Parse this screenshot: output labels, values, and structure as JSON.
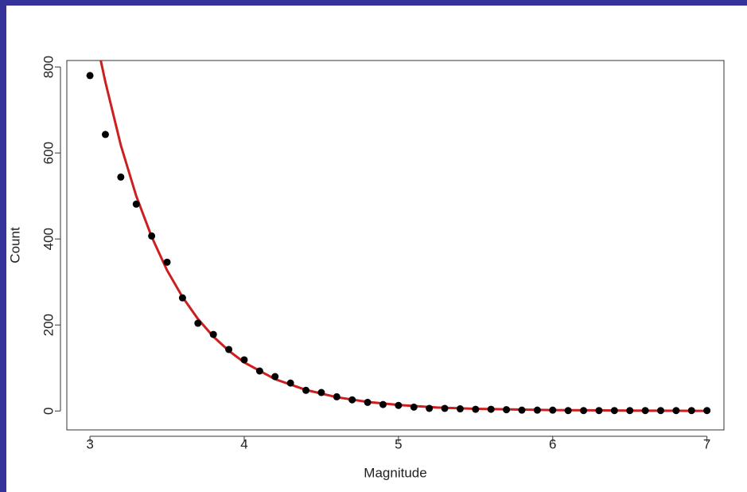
{
  "chart_data": {
    "type": "scatter",
    "x_label": "Magnitude",
    "y_label": "Count",
    "xlim": [
      2.85,
      7.11
    ],
    "ylim": [
      -44,
      815
    ],
    "xticks": [
      3,
      4,
      5,
      6,
      7
    ],
    "yticks": [
      0,
      200,
      400,
      600,
      800
    ],
    "points": {
      "color": "#000000",
      "x": [
        3.0,
        3.1,
        3.2,
        3.3,
        3.4,
        3.5,
        3.6,
        3.7,
        3.8,
        3.9,
        4.0,
        4.1,
        4.2,
        4.3,
        4.4,
        4.5,
        4.6,
        4.7,
        4.8,
        4.9,
        5.0,
        5.1,
        5.2,
        5.3,
        5.4,
        5.5,
        5.6,
        5.7,
        5.8,
        5.9,
        6.0,
        6.1,
        6.2,
        6.3,
        6.4,
        6.5,
        6.6,
        6.7,
        6.8,
        6.9,
        7.0
      ],
      "values": [
        780,
        643,
        544,
        481,
        407,
        346,
        263,
        204,
        178,
        143,
        119,
        93,
        80,
        65,
        48,
        43,
        33,
        26,
        20,
        15,
        13,
        9,
        6,
        6,
        5,
        4,
        4,
        3,
        2,
        2,
        2,
        1,
        1,
        1,
        1,
        1,
        1,
        1,
        1,
        1,
        1
      ]
    },
    "curve": {
      "color": "#cc1f1f",
      "x": [
        3.07,
        3.1,
        3.2,
        3.3,
        3.4,
        3.5,
        3.6,
        3.7,
        3.8,
        3.9,
        4.0,
        4.2,
        4.4,
        4.6,
        4.8,
        5.0,
        5.25,
        5.5,
        6.0,
        6.5,
        7.0
      ],
      "values": [
        815,
        765,
        618,
        500,
        405,
        327,
        265,
        214,
        173,
        140,
        113,
        74,
        49,
        32,
        21,
        14,
        8,
        5,
        2,
        1,
        0.2
      ]
    }
  }
}
